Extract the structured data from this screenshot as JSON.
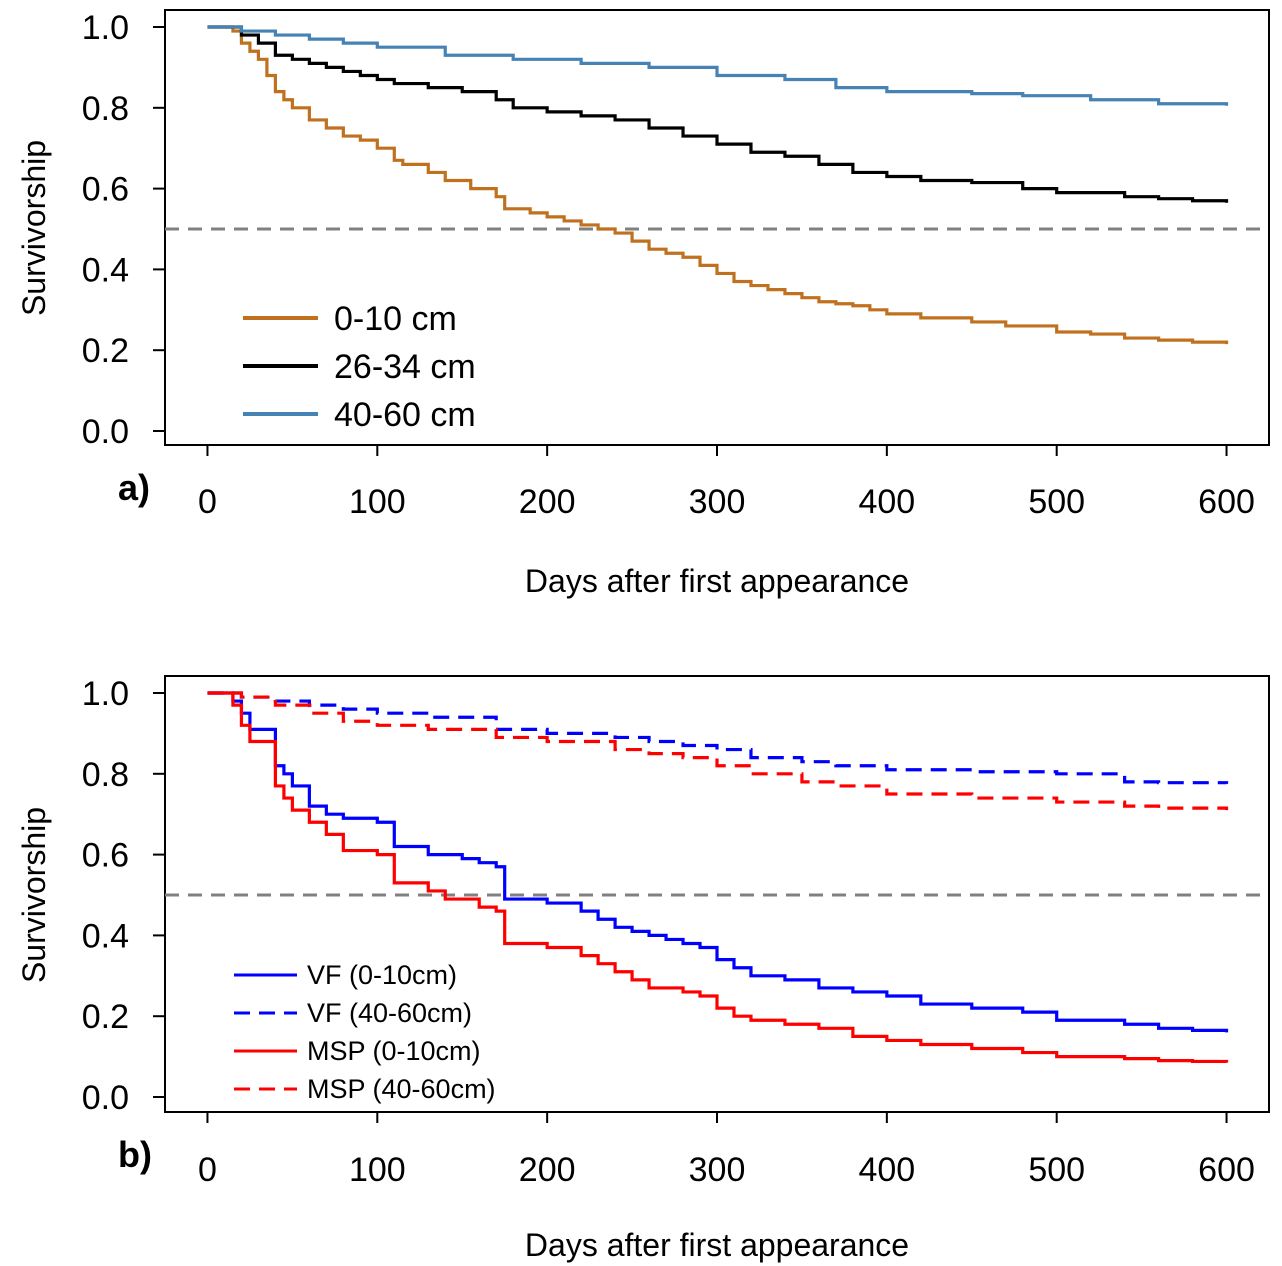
{
  "chart_data": [
    {
      "type": "line",
      "panel_label": "a)",
      "xlabel": "Days after first appearance",
      "ylabel": "Survivorship",
      "xlim": [
        -25,
        625
      ],
      "ylim": [
        0,
        1.0
      ],
      "xticks": [
        0,
        100,
        200,
        300,
        400,
        500,
        600
      ],
      "yticks": [
        0.0,
        0.2,
        0.4,
        0.6,
        0.8,
        1.0
      ],
      "xtick_labels": [
        "0",
        "100",
        "200",
        "300",
        "400",
        "500",
        "600"
      ],
      "ytick_labels": [
        "0.0",
        "0.2",
        "0.4",
        "0.6",
        "0.8",
        "1.0"
      ],
      "reference_line": {
        "y": 0.5,
        "style": "dashed",
        "color": "#808080"
      },
      "grid": false,
      "legend_position": "bottom-left",
      "step": true,
      "series": [
        {
          "name": "0-10 cm",
          "color": "#c0711f",
          "style": "solid",
          "x": [
            0,
            15,
            20,
            25,
            30,
            35,
            40,
            45,
            50,
            60,
            70,
            80,
            90,
            100,
            110,
            115,
            130,
            140,
            155,
            170,
            175,
            190,
            200,
            210,
            220,
            230,
            240,
            250,
            260,
            270,
            280,
            290,
            300,
            310,
            320,
            330,
            340,
            350,
            360,
            370,
            380,
            390,
            400,
            420,
            450,
            470,
            500,
            520,
            540,
            560,
            580,
            600
          ],
          "y": [
            1.0,
            0.99,
            0.96,
            0.94,
            0.92,
            0.88,
            0.84,
            0.82,
            0.8,
            0.77,
            0.75,
            0.73,
            0.72,
            0.7,
            0.67,
            0.66,
            0.64,
            0.62,
            0.6,
            0.58,
            0.55,
            0.54,
            0.53,
            0.52,
            0.51,
            0.5,
            0.49,
            0.47,
            0.45,
            0.44,
            0.43,
            0.41,
            0.39,
            0.37,
            0.36,
            0.35,
            0.34,
            0.33,
            0.32,
            0.315,
            0.31,
            0.3,
            0.29,
            0.28,
            0.27,
            0.26,
            0.245,
            0.24,
            0.23,
            0.225,
            0.22,
            0.215
          ]
        },
        {
          "name": "26-34 cm",
          "color": "#000000",
          "style": "solid",
          "x": [
            0,
            20,
            30,
            40,
            50,
            60,
            70,
            80,
            90,
            100,
            110,
            130,
            150,
            170,
            180,
            200,
            220,
            240,
            260,
            280,
            300,
            320,
            340,
            360,
            380,
            400,
            420,
            450,
            480,
            500,
            540,
            560,
            580,
            600
          ],
          "y": [
            1.0,
            0.98,
            0.96,
            0.93,
            0.92,
            0.91,
            0.9,
            0.89,
            0.88,
            0.87,
            0.86,
            0.85,
            0.84,
            0.82,
            0.8,
            0.79,
            0.78,
            0.77,
            0.75,
            0.73,
            0.71,
            0.69,
            0.68,
            0.66,
            0.64,
            0.63,
            0.62,
            0.615,
            0.6,
            0.59,
            0.58,
            0.575,
            0.57,
            0.565
          ]
        },
        {
          "name": "40-60 cm",
          "color": "#4682b4",
          "style": "solid",
          "x": [
            0,
            20,
            40,
            60,
            80,
            100,
            140,
            180,
            220,
            260,
            300,
            340,
            370,
            400,
            450,
            480,
            520,
            560,
            600
          ],
          "y": [
            1.0,
            0.99,
            0.98,
            0.97,
            0.96,
            0.95,
            0.93,
            0.92,
            0.91,
            0.9,
            0.88,
            0.87,
            0.85,
            0.84,
            0.835,
            0.83,
            0.82,
            0.81,
            0.805
          ]
        }
      ]
    },
    {
      "type": "line",
      "panel_label": "b)",
      "xlabel": "Days after first appearance",
      "ylabel": "Survivorship",
      "xlim": [
        -25,
        625
      ],
      "ylim": [
        0,
        1.0
      ],
      "xticks": [
        0,
        100,
        200,
        300,
        400,
        500,
        600
      ],
      "yticks": [
        0.0,
        0.2,
        0.4,
        0.6,
        0.8,
        1.0
      ],
      "xtick_labels": [
        "0",
        "100",
        "200",
        "300",
        "400",
        "500",
        "600"
      ],
      "ytick_labels": [
        "0.0",
        "0.2",
        "0.4",
        "0.6",
        "0.8",
        "1.0"
      ],
      "reference_line": {
        "y": 0.5,
        "style": "dashed",
        "color": "#808080"
      },
      "grid": false,
      "legend_position": "bottom-left",
      "step": true,
      "series": [
        {
          "name": "VF (0-10cm)",
          "color": "#0000ff",
          "style": "solid",
          "x": [
            0,
            15,
            20,
            25,
            40,
            45,
            50,
            60,
            70,
            80,
            100,
            110,
            130,
            150,
            160,
            170,
            175,
            200,
            220,
            230,
            240,
            250,
            260,
            270,
            280,
            290,
            300,
            310,
            320,
            340,
            360,
            380,
            400,
            420,
            450,
            480,
            500,
            540,
            560,
            580,
            600
          ],
          "y": [
            1.0,
            0.98,
            0.95,
            0.91,
            0.82,
            0.8,
            0.77,
            0.72,
            0.7,
            0.69,
            0.68,
            0.62,
            0.6,
            0.59,
            0.58,
            0.57,
            0.49,
            0.48,
            0.46,
            0.44,
            0.42,
            0.41,
            0.4,
            0.39,
            0.38,
            0.37,
            0.34,
            0.32,
            0.3,
            0.29,
            0.27,
            0.26,
            0.25,
            0.23,
            0.22,
            0.21,
            0.19,
            0.18,
            0.17,
            0.165,
            0.16
          ]
        },
        {
          "name": "VF (40-60cm)",
          "color": "#0000ff",
          "style": "dashed",
          "x": [
            0,
            20,
            40,
            60,
            80,
            100,
            130,
            170,
            200,
            240,
            260,
            280,
            300,
            320,
            350,
            370,
            400,
            450,
            500,
            540,
            560,
            600
          ],
          "y": [
            1.0,
            0.99,
            0.98,
            0.97,
            0.96,
            0.95,
            0.94,
            0.91,
            0.9,
            0.89,
            0.88,
            0.87,
            0.86,
            0.84,
            0.83,
            0.82,
            0.81,
            0.805,
            0.8,
            0.78,
            0.778,
            0.775
          ]
        },
        {
          "name": "MSP (0-10cm)",
          "color": "#ff0000",
          "style": "solid",
          "x": [
            0,
            15,
            20,
            25,
            40,
            45,
            50,
            60,
            70,
            80,
            100,
            110,
            130,
            140,
            160,
            170,
            175,
            200,
            220,
            230,
            240,
            250,
            260,
            280,
            290,
            300,
            310,
            320,
            340,
            360,
            380,
            400,
            420,
            450,
            480,
            500,
            540,
            560,
            580,
            600
          ],
          "y": [
            1.0,
            0.97,
            0.92,
            0.88,
            0.77,
            0.74,
            0.71,
            0.68,
            0.65,
            0.61,
            0.6,
            0.53,
            0.51,
            0.49,
            0.47,
            0.46,
            0.38,
            0.37,
            0.35,
            0.33,
            0.31,
            0.29,
            0.27,
            0.26,
            0.25,
            0.22,
            0.2,
            0.19,
            0.18,
            0.17,
            0.15,
            0.14,
            0.13,
            0.12,
            0.11,
            0.1,
            0.095,
            0.09,
            0.088,
            0.085
          ]
        },
        {
          "name": "MSP (40-60cm)",
          "color": "#ff0000",
          "style": "dashed",
          "x": [
            0,
            20,
            40,
            60,
            80,
            100,
            130,
            170,
            200,
            240,
            260,
            280,
            300,
            320,
            350,
            370,
            400,
            450,
            500,
            540,
            560,
            600
          ],
          "y": [
            1.0,
            0.99,
            0.97,
            0.95,
            0.93,
            0.92,
            0.91,
            0.89,
            0.88,
            0.86,
            0.85,
            0.84,
            0.82,
            0.8,
            0.78,
            0.77,
            0.75,
            0.74,
            0.73,
            0.72,
            0.715,
            0.71
          ]
        }
      ]
    }
  ]
}
